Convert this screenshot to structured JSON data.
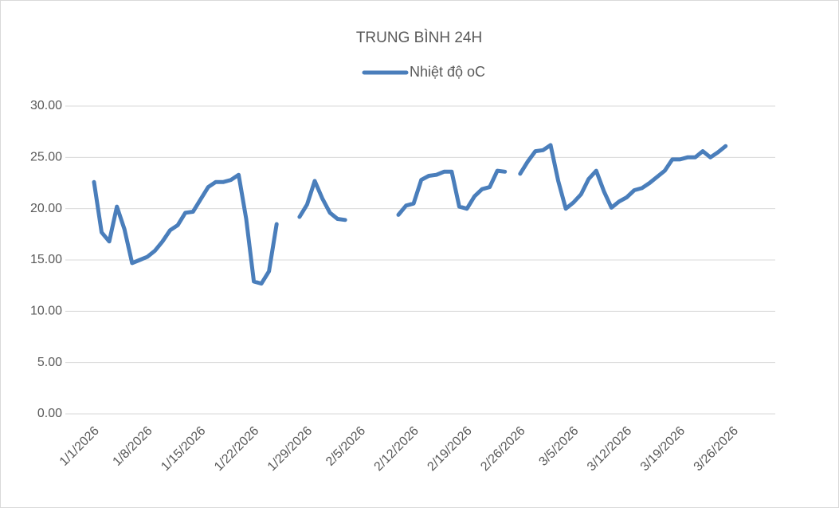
{
  "chart_data": {
    "type": "line",
    "title": "TRUNG BÌNH 24H",
    "x": [
      "1/1/2026",
      "1/2/2026",
      "1/3/2026",
      "1/4/2026",
      "1/5/2026",
      "1/6/2026",
      "1/7/2026",
      "1/8/2026",
      "1/9/2026",
      "1/10/2026",
      "1/11/2026",
      "1/12/2026",
      "1/13/2026",
      "1/14/2026",
      "1/15/2026",
      "1/16/2026",
      "1/17/2026",
      "1/18/2026",
      "1/19/2026",
      "1/20/2026",
      "1/21/2026",
      "1/22/2026",
      "1/23/2026",
      "1/24/2026",
      "1/25/2026",
      "1/26/2026",
      "1/27/2026",
      "1/28/2026",
      "1/29/2026",
      "1/30/2026",
      "1/31/2026",
      "2/1/2026",
      "2/2/2026",
      "2/3/2026",
      "2/4/2026",
      "2/5/2026",
      "2/6/2026",
      "2/7/2026",
      "2/8/2026",
      "2/9/2026",
      "2/10/2026",
      "2/11/2026",
      "2/12/2026",
      "2/13/2026",
      "2/14/2026",
      "2/15/2026",
      "2/16/2026",
      "2/17/2026",
      "2/18/2026",
      "2/19/2026",
      "2/20/2026",
      "2/21/2026",
      "2/22/2026",
      "2/23/2026",
      "2/24/2026",
      "2/25/2026",
      "2/26/2026",
      "2/27/2026",
      "2/28/2026",
      "3/1/2026",
      "3/2/2026",
      "3/3/2026",
      "3/4/2026",
      "3/5/2026",
      "3/6/2026",
      "3/7/2026",
      "3/8/2026",
      "3/9/2026",
      "3/10/2026",
      "3/11/2026",
      "3/12/2026",
      "3/13/2026",
      "3/14/2026",
      "3/15/2026",
      "3/16/2026",
      "3/17/2026",
      "3/18/2026",
      "3/19/2026",
      "3/20/2026",
      "3/21/2026",
      "3/22/2026",
      "3/23/2026",
      "3/24/2026",
      "3/25/2026",
      "3/26/2026",
      "3/27/2026",
      "3/28/2026",
      "3/29/2026",
      "3/30/2026",
      "3/31/2026"
    ],
    "series": [
      {
        "name": "Nhiệt độ oC",
        "color": "#4a7ebb",
        "values": [
          22.6,
          17.7,
          16.8,
          20.2,
          18.0,
          14.7,
          15.0,
          15.3,
          15.9,
          16.8,
          17.9,
          18.4,
          19.6,
          19.7,
          20.9,
          22.1,
          22.6,
          22.6,
          22.8,
          23.3,
          19.0,
          12.9,
          12.7,
          13.9,
          18.5,
          null,
          null,
          19.2,
          20.4,
          22.7,
          21.0,
          19.6,
          19.0,
          18.9,
          null,
          null,
          null,
          null,
          null,
          null,
          19.4,
          20.3,
          20.5,
          22.8,
          23.2,
          23.3,
          23.6,
          23.6,
          20.2,
          20.0,
          21.2,
          21.9,
          22.1,
          23.7,
          23.6,
          null,
          23.4,
          24.6,
          25.6,
          25.7,
          26.2,
          22.7,
          20.0,
          20.6,
          21.4,
          22.9,
          23.7,
          21.7,
          20.1,
          20.7,
          21.1,
          21.8,
          22.0,
          22.5,
          23.1,
          23.7,
          24.8,
          24.8,
          25.0,
          25.0,
          25.6,
          25.0,
          25.5,
          26.1,
          null,
          null,
          null,
          null,
          null,
          null
        ]
      }
    ],
    "xticks": [
      "1/1/2026",
      "1/8/2026",
      "1/15/2026",
      "1/22/2026",
      "1/29/2026",
      "2/5/2026",
      "2/12/2026",
      "2/19/2026",
      "2/26/2026",
      "3/5/2026",
      "3/12/2026",
      "3/19/2026",
      "3/26/2026"
    ],
    "ylim": [
      0,
      30
    ],
    "yticks": [
      {
        "value": 0,
        "label": "0.00"
      },
      {
        "value": 5,
        "label": "5.00"
      },
      {
        "value": 10,
        "label": "10.00"
      },
      {
        "value": 15,
        "label": "15.00"
      },
      {
        "value": 20,
        "label": "20.00"
      },
      {
        "value": 25,
        "label": "25.00"
      },
      {
        "value": 30,
        "label": "30.00"
      }
    ],
    "grid": true,
    "legend": "top"
  }
}
